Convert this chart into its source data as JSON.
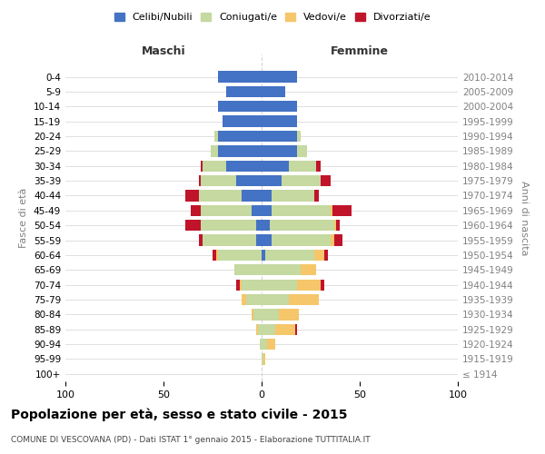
{
  "age_groups": [
    "100+",
    "95-99",
    "90-94",
    "85-89",
    "80-84",
    "75-79",
    "70-74",
    "65-69",
    "60-64",
    "55-59",
    "50-54",
    "45-49",
    "40-44",
    "35-39",
    "30-34",
    "25-29",
    "20-24",
    "15-19",
    "10-14",
    "5-9",
    "0-4"
  ],
  "birth_years": [
    "≤ 1914",
    "1915-1919",
    "1920-1924",
    "1925-1929",
    "1930-1934",
    "1935-1939",
    "1940-1944",
    "1945-1949",
    "1950-1954",
    "1955-1959",
    "1960-1964",
    "1965-1969",
    "1970-1974",
    "1975-1979",
    "1980-1984",
    "1985-1989",
    "1990-1994",
    "1995-1999",
    "2000-2004",
    "2005-2009",
    "2010-2014"
  ],
  "male_celibi": [
    0,
    0,
    0,
    0,
    0,
    0,
    0,
    0,
    0,
    3,
    3,
    5,
    10,
    13,
    18,
    22,
    22,
    20,
    22,
    18,
    22
  ],
  "male_coniugati": [
    0,
    0,
    1,
    2,
    4,
    8,
    10,
    14,
    22,
    27,
    28,
    26,
    22,
    18,
    12,
    4,
    2,
    0,
    0,
    0,
    0
  ],
  "male_vedovi": [
    0,
    0,
    0,
    1,
    1,
    2,
    1,
    0,
    1,
    0,
    0,
    0,
    0,
    0,
    0,
    0,
    0,
    0,
    0,
    0,
    0
  ],
  "male_divorziati": [
    0,
    0,
    0,
    0,
    0,
    0,
    2,
    0,
    2,
    2,
    8,
    5,
    7,
    1,
    1,
    0,
    0,
    0,
    0,
    0,
    0
  ],
  "female_celibi": [
    0,
    0,
    0,
    0,
    0,
    0,
    0,
    0,
    2,
    5,
    4,
    5,
    5,
    10,
    14,
    18,
    18,
    18,
    18,
    12,
    18
  ],
  "female_coniugati": [
    0,
    1,
    3,
    7,
    9,
    14,
    18,
    20,
    25,
    30,
    33,
    30,
    22,
    20,
    14,
    5,
    2,
    0,
    0,
    0,
    0
  ],
  "female_vedovi": [
    0,
    1,
    4,
    10,
    10,
    15,
    12,
    8,
    5,
    2,
    1,
    1,
    0,
    0,
    0,
    0,
    0,
    0,
    0,
    0,
    0
  ],
  "female_divorziati": [
    0,
    0,
    0,
    1,
    0,
    0,
    2,
    0,
    2,
    4,
    2,
    10,
    2,
    5,
    2,
    0,
    0,
    0,
    0,
    0,
    0
  ],
  "color_celibi": "#4472c4",
  "color_coniugati": "#c5d9a0",
  "color_vedovi": "#f5c66a",
  "color_divorziati": "#c0142a",
  "title": "Popolazione per età, sesso e stato civile - 2015",
  "subtitle": "COMUNE DI VESCOVANA (PD) - Dati ISTAT 1° gennaio 2015 - Elaborazione TUTTITALIA.IT",
  "ylabel_left": "Fasce di età",
  "ylabel_right": "Anni di nascita",
  "xlabel_left": "Maschi",
  "xlabel_right": "Femmine",
  "xlim": 100,
  "legend_labels": [
    "Celibi/Nubili",
    "Coniugati/e",
    "Vedovi/e",
    "Divorziati/e"
  ]
}
